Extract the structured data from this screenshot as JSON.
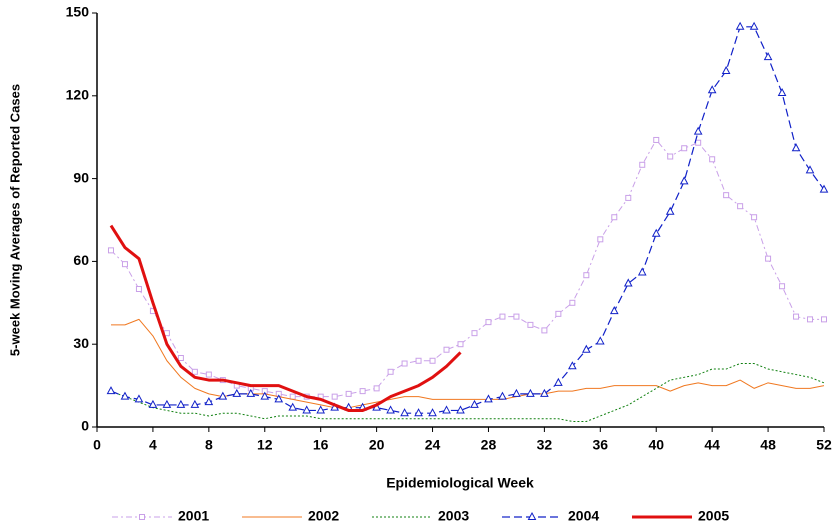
{
  "chart_data": {
    "type": "line",
    "x_label": "Epidemiological Week",
    "y_label": "5-week Moving Averages of Reported Cases",
    "xlim": [
      0,
      52
    ],
    "xticks": [
      0,
      4,
      8,
      12,
      16,
      20,
      24,
      28,
      32,
      36,
      40,
      44,
      48,
      52
    ],
    "ylim": [
      0,
      150
    ],
    "yticks": [
      0,
      30,
      60,
      90,
      120,
      150
    ],
    "x": [
      1,
      2,
      3,
      4,
      5,
      6,
      7,
      8,
      9,
      10,
      11,
      12,
      13,
      14,
      15,
      16,
      17,
      18,
      19,
      20,
      21,
      22,
      23,
      24,
      25,
      26,
      27,
      28,
      29,
      30,
      31,
      32,
      33,
      34,
      35,
      36,
      37,
      38,
      39,
      40,
      41,
      42,
      43,
      44,
      45,
      46,
      47,
      48,
      49,
      50,
      51,
      52
    ],
    "legend": "bottom",
    "series": [
      {
        "name": "2001",
        "color": "#c9a0e8",
        "dash": "dashdot",
        "marker": "square",
        "width": 1,
        "values": [
          64,
          59,
          50,
          42,
          34,
          25,
          20,
          19,
          17,
          15,
          14,
          13,
          12,
          11,
          11,
          11,
          11,
          12,
          13,
          14,
          20,
          23,
          24,
          24,
          28,
          30,
          34,
          38,
          40,
          40,
          37,
          35,
          41,
          45,
          55,
          68,
          76,
          83,
          95,
          104,
          98,
          101,
          103,
          97,
          84,
          80,
          76,
          61,
          51,
          40,
          39,
          39
        ]
      },
      {
        "name": "2002",
        "color": "#f07820",
        "dash": "solid",
        "marker": "none",
        "width": 1,
        "values": [
          37,
          37,
          39,
          33,
          24,
          18,
          14,
          12,
          11,
          12,
          12,
          12,
          11,
          10,
          9,
          8,
          7,
          7,
          8,
          9,
          10,
          11,
          11,
          10,
          10,
          10,
          10,
          10,
          10,
          11,
          12,
          12,
          13,
          13,
          14,
          14,
          15,
          15,
          15,
          15,
          13,
          15,
          16,
          15,
          15,
          17,
          14,
          16,
          15,
          14,
          14,
          15
        ]
      },
      {
        "name": "2003",
        "color": "#108010",
        "dash": "dotted",
        "marker": "none",
        "width": 1,
        "values": [
          13,
          11,
          9,
          7,
          6,
          5,
          5,
          4,
          5,
          5,
          4,
          3,
          4,
          4,
          4,
          3,
          3,
          3,
          3,
          3,
          3,
          3,
          3,
          3,
          3,
          3,
          3,
          3,
          3,
          3,
          3,
          3,
          3,
          2,
          2,
          4,
          6,
          8,
          11,
          14,
          17,
          18,
          19,
          21,
          21,
          23,
          23,
          21,
          20,
          19,
          18,
          16
        ]
      },
      {
        "name": "2004",
        "color": "#1020c8",
        "dash": "dashed",
        "marker": "triangle",
        "width": 1.2,
        "values": [
          13,
          11,
          10,
          8,
          8,
          8,
          8,
          9,
          11,
          12,
          12,
          11,
          10,
          7,
          6,
          6,
          7,
          7,
          7,
          7,
          6,
          5,
          5,
          5,
          6,
          6,
          8,
          10,
          11,
          12,
          12,
          12,
          16,
          22,
          28,
          31,
          42,
          52,
          56,
          70,
          78,
          89,
          107,
          122,
          129,
          145,
          145,
          134,
          121,
          101,
          93,
          86
        ]
      },
      {
        "name": "2005",
        "color": "#e01010",
        "dash": "solid",
        "marker": "none",
        "width": 3,
        "values": [
          73,
          65,
          61,
          45,
          30,
          22,
          18,
          17,
          17,
          16,
          15,
          15,
          15,
          13,
          11,
          10,
          8,
          6,
          6,
          8,
          11,
          13,
          15,
          18,
          22,
          27,
          null,
          null,
          null,
          null,
          null,
          null,
          null,
          null,
          null,
          null,
          null,
          null,
          null,
          null,
          null,
          null,
          null,
          null,
          null,
          null,
          null,
          null,
          null,
          null,
          null,
          null
        ]
      }
    ]
  }
}
